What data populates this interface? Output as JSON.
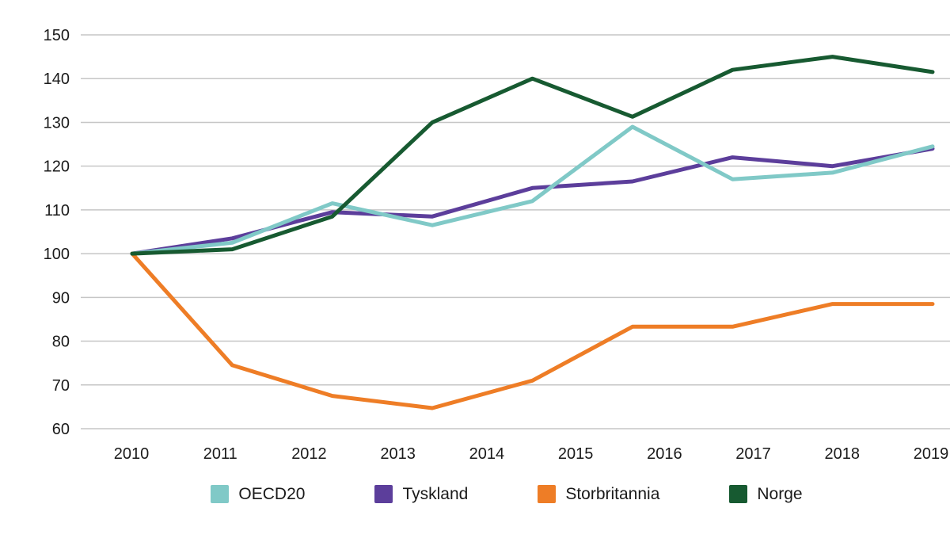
{
  "chart_data": {
    "type": "line",
    "title": "",
    "xlabel": "",
    "ylabel": "",
    "index_base": 100,
    "x_labels": [
      "2010",
      "2011",
      "2012",
      "2013",
      "2014",
      "2015",
      "2016",
      "2017",
      "2018",
      "2019"
    ],
    "y_ticks": [
      150,
      140,
      130,
      120,
      110,
      100,
      90,
      80,
      70,
      60
    ],
    "ylim": [
      60,
      150
    ],
    "grid": "horizontal",
    "legend_position": "bottom",
    "series": [
      {
        "name": "OECD20",
        "color": "#80c9c7",
        "values": [
          100,
          102.5,
          111.5,
          106.5,
          112,
          129,
          117,
          118.5,
          124.5
        ]
      },
      {
        "name": "Tyskland",
        "color": "#5c3e9b",
        "values": [
          100,
          103.5,
          109.5,
          108.5,
          115,
          116.5,
          122,
          120,
          124
        ]
      },
      {
        "name": "Storbritannia",
        "color": "#ee7d26",
        "values": [
          100,
          74.5,
          67.5,
          64.7,
          71,
          83.3,
          83.3,
          88.5,
          88.5
        ]
      },
      {
        "name": "Norge",
        "color": "#175a31",
        "values": [
          100,
          101,
          108.5,
          130,
          140,
          131.3,
          142,
          145,
          141.5
        ]
      }
    ]
  },
  "style": {
    "grid_color": "#c6c6c6",
    "text_color": "#1a1a1a",
    "line_width": 5
  }
}
